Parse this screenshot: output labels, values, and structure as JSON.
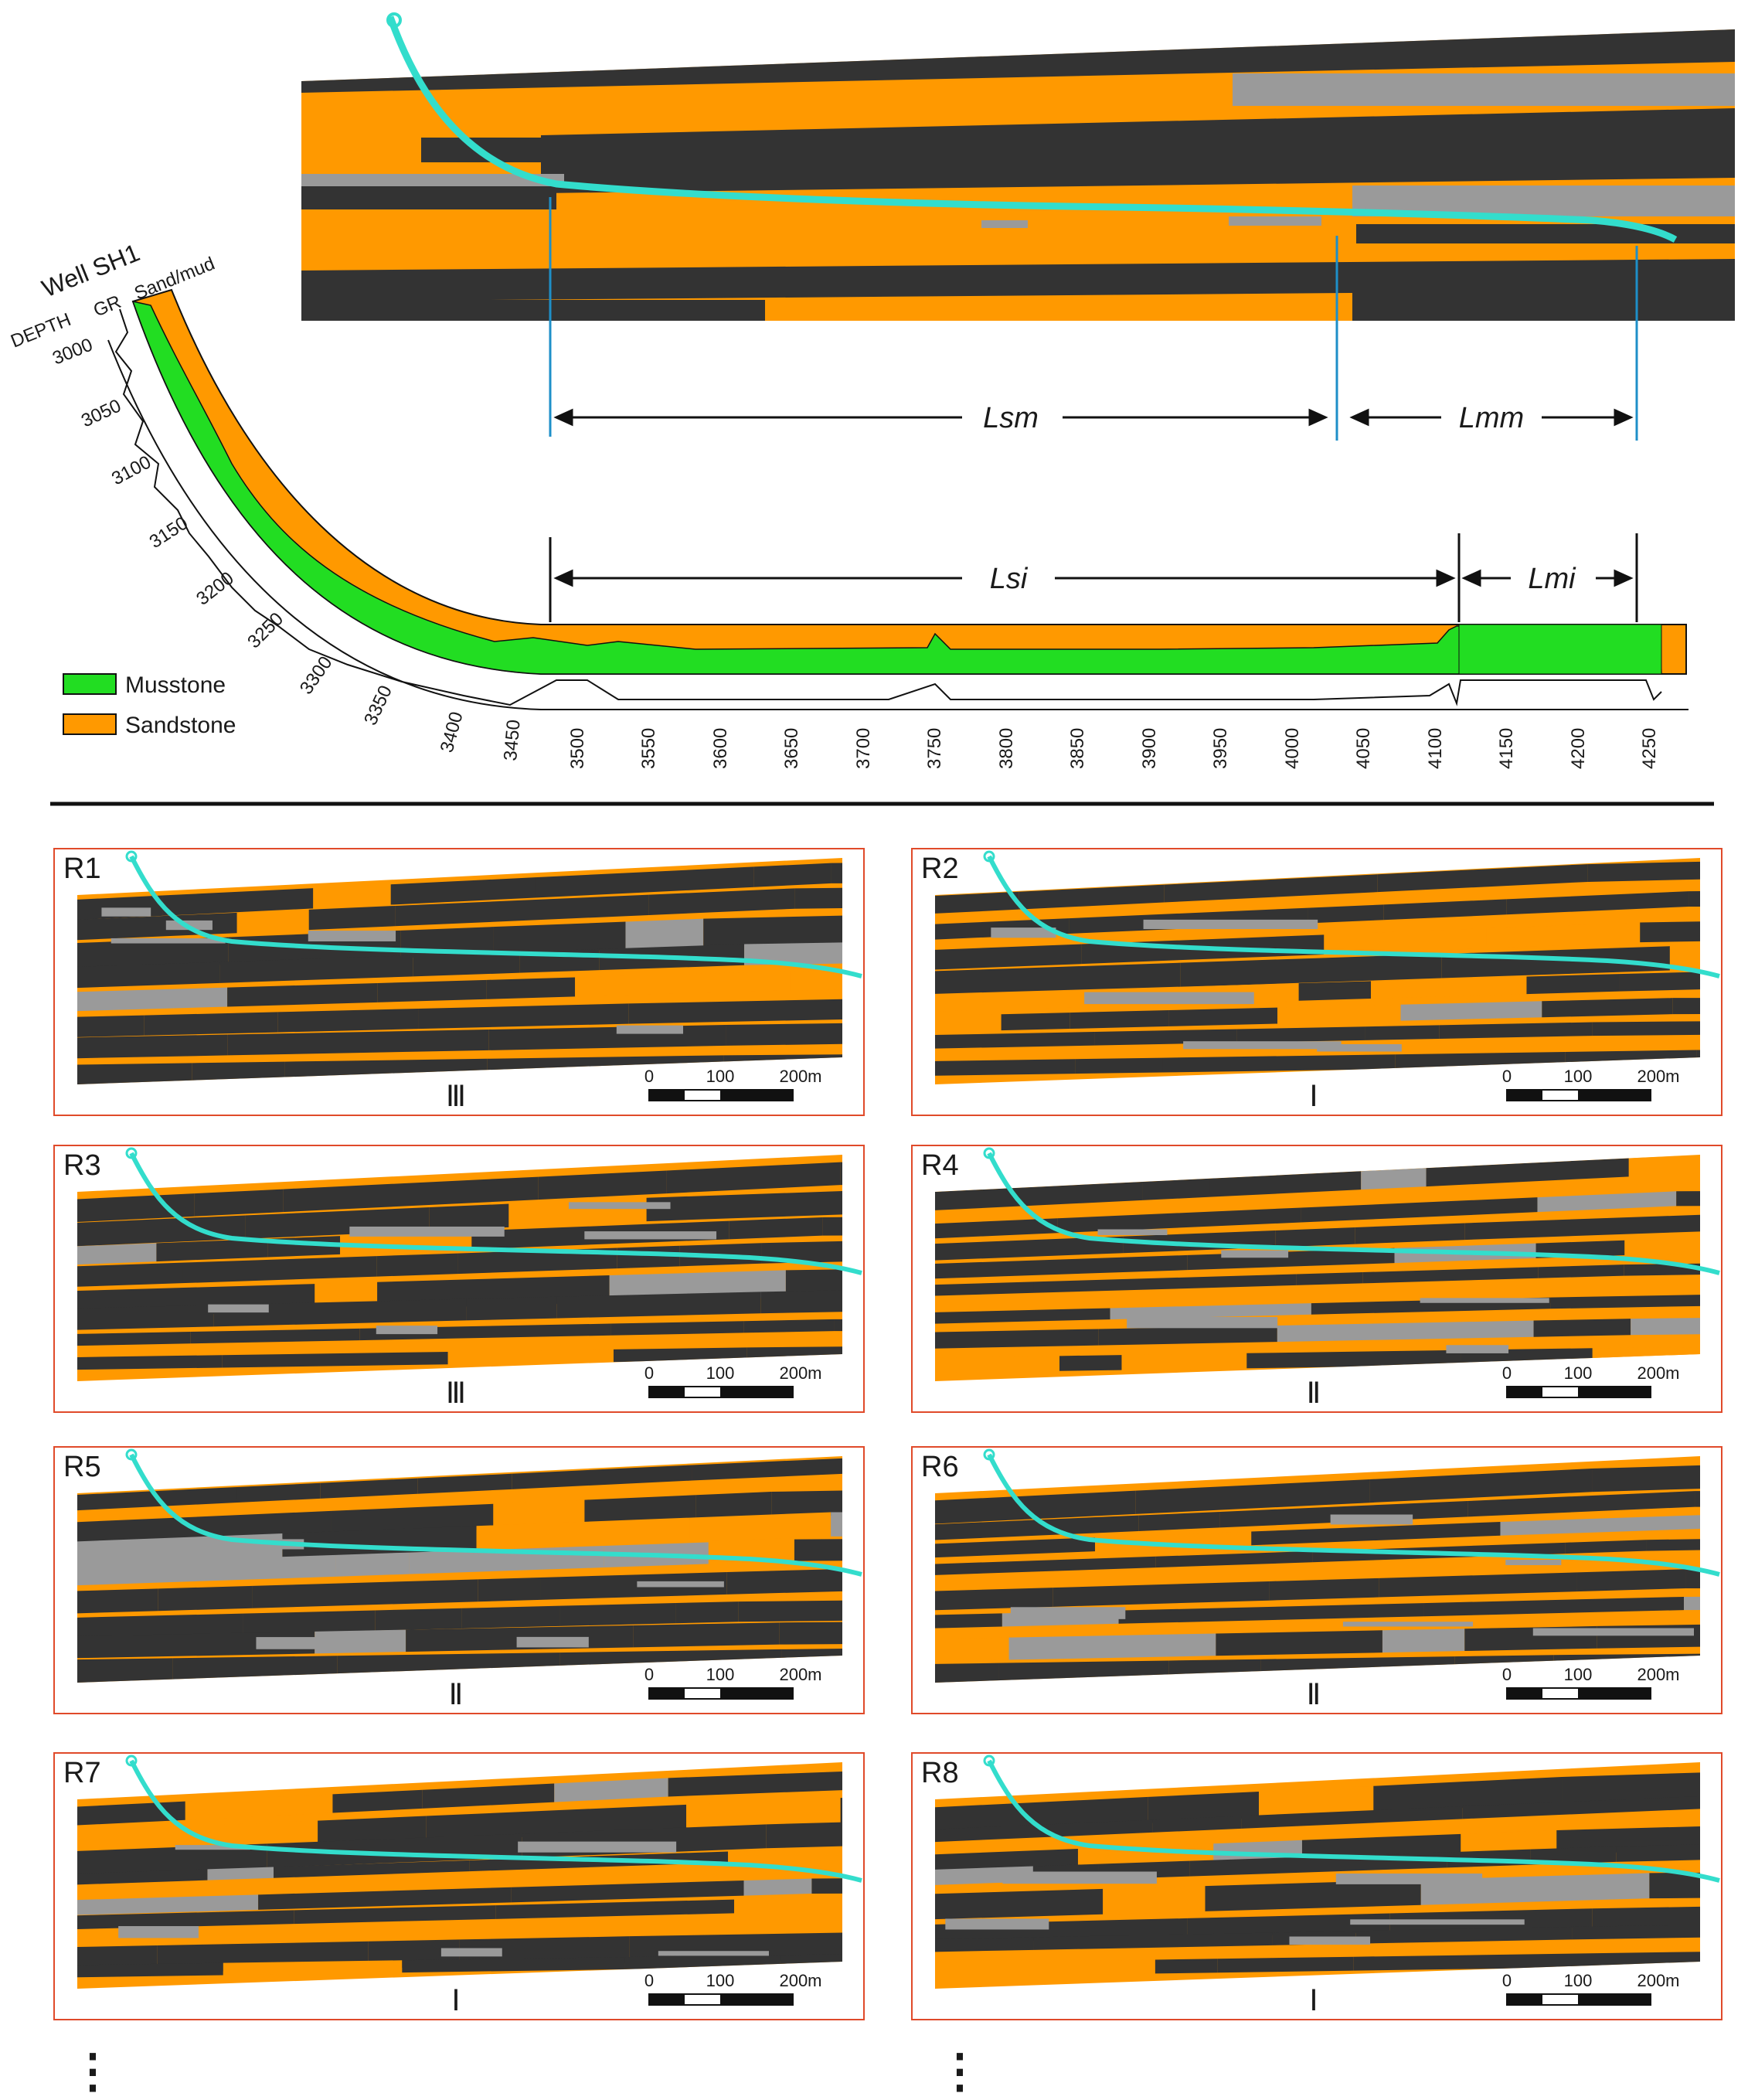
{
  "well": {
    "title": "Well  SH1",
    "col_depth": "DEPTH",
    "col_gr": "GR",
    "col_sandmud": "Sand/mud",
    "depth_ticks": [
      "3000",
      "3050",
      "3100",
      "3150",
      "3200",
      "3250",
      "3300",
      "3350",
      "3400",
      "3450",
      "3500",
      "3550",
      "3600",
      "3650",
      "3700",
      "3750",
      "3800",
      "3850",
      "3900",
      "3950",
      "4000",
      "4050",
      "4100",
      "4150",
      "4200",
      "4250"
    ]
  },
  "legend": {
    "items": [
      {
        "label": "Musstone",
        "color": "#22dd22"
      },
      {
        "label": "Sandstone",
        "color": "#ff9900"
      }
    ]
  },
  "intervals": {
    "lsm": "Lsm",
    "lmm": "Lmm",
    "lsi": "Lsi",
    "lmi": "Lmi"
  },
  "colors": {
    "sand": "#ff9900",
    "mud": "#333333",
    "gray": "#9a9a9a",
    "well_path": "#33ddcc",
    "marker": "#1e8fc8",
    "panel_border": "#e04a2a"
  },
  "realizations": [
    {
      "id": "R1",
      "class": "Ⅲ"
    },
    {
      "id": "R2",
      "class": "Ⅰ"
    },
    {
      "id": "R3",
      "class": "Ⅲ"
    },
    {
      "id": "R4",
      "class": "Ⅱ"
    },
    {
      "id": "R5",
      "class": "Ⅱ"
    },
    {
      "id": "R6",
      "class": "Ⅱ"
    },
    {
      "id": "R7",
      "class": "Ⅰ"
    },
    {
      "id": "R8",
      "class": "Ⅰ"
    }
  ],
  "scale_bar": {
    "t0": "0",
    "t1": "100",
    "t2": "200m"
  },
  "continuation": "⋮"
}
